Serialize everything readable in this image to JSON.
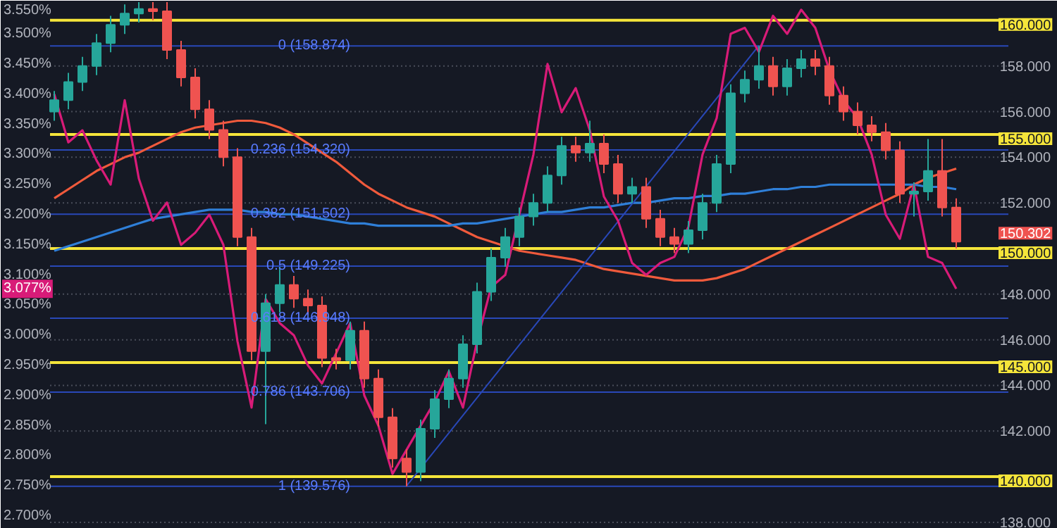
{
  "chart_data": {
    "type": "candlestick",
    "categories": [
      null,
      null,
      null,
      null,
      null,
      null,
      null,
      null,
      null,
      null,
      null,
      null,
      null,
      null,
      null,
      null,
      null,
      null,
      null,
      null,
      null,
      null,
      null,
      null,
      null,
      null,
      null,
      null,
      null,
      null,
      null,
      null,
      null,
      null,
      null,
      null,
      null,
      null,
      null,
      null,
      null,
      null,
      null,
      null,
      null,
      null,
      null,
      null,
      null,
      null,
      null,
      null,
      null,
      null,
      null,
      null,
      null,
      null,
      null,
      null,
      null,
      null,
      null,
      null,
      null
    ],
    "ohlc": [
      [
        156.0,
        156.9,
        155.6,
        156.5
      ],
      [
        156.5,
        157.7,
        156.1,
        157.3
      ],
      [
        157.3,
        158.4,
        156.9,
        158.0
      ],
      [
        158.0,
        159.4,
        157.6,
        159.0
      ],
      [
        159.0,
        160.2,
        158.6,
        159.8
      ],
      [
        159.8,
        160.7,
        159.4,
        160.3
      ],
      [
        160.3,
        160.8,
        159.9,
        160.5
      ],
      [
        160.5,
        160.8,
        160.0,
        160.4
      ],
      [
        160.4,
        160.8,
        158.3,
        158.7
      ],
      [
        158.7,
        159.1,
        157.1,
        157.5
      ],
      [
        157.5,
        157.9,
        155.7,
        156.1
      ],
      [
        156.1,
        156.5,
        154.8,
        155.2
      ],
      [
        155.2,
        155.6,
        153.6,
        154.0
      ],
      [
        154.0,
        154.4,
        150.1,
        150.5
      ],
      [
        150.5,
        150.9,
        145.1,
        145.5
      ],
      [
        145.5,
        148.0,
        142.3,
        147.6
      ],
      [
        147.6,
        149.2,
        147.2,
        148.4
      ],
      [
        148.4,
        148.8,
        147.4,
        147.8
      ],
      [
        147.8,
        148.2,
        147.1,
        147.5
      ],
      [
        147.5,
        147.9,
        144.8,
        145.2
      ],
      [
        145.2,
        145.6,
        144.7,
        145.1
      ],
      [
        145.1,
        146.8,
        144.7,
        146.4
      ],
      [
        146.4,
        146.8,
        143.9,
        144.3
      ],
      [
        144.3,
        144.7,
        142.2,
        142.6
      ],
      [
        142.6,
        143.0,
        140.4,
        140.8
      ],
      [
        140.8,
        141.2,
        139.576,
        140.2
      ],
      [
        140.2,
        142.5,
        139.8,
        142.1
      ],
      [
        142.1,
        143.8,
        141.7,
        143.4
      ],
      [
        143.4,
        144.7,
        143.0,
        144.3
      ],
      [
        144.3,
        146.2,
        143.9,
        145.8
      ],
      [
        145.8,
        148.5,
        145.4,
        148.1
      ],
      [
        148.1,
        150.0,
        147.7,
        149.6
      ],
      [
        149.6,
        150.9,
        149.2,
        150.5
      ],
      [
        150.5,
        151.8,
        150.1,
        151.4
      ],
      [
        151.4,
        152.4,
        151.0,
        152.0
      ],
      [
        152.0,
        153.6,
        151.6,
        153.2
      ],
      [
        153.2,
        154.9,
        152.8,
        154.5
      ],
      [
        154.5,
        154.9,
        153.8,
        154.2
      ],
      [
        154.2,
        155.6,
        153.8,
        154.6
      ],
      [
        154.6,
        155.0,
        153.3,
        153.7
      ],
      [
        153.7,
        154.1,
        152.0,
        152.4
      ],
      [
        152.4,
        153.1,
        152.0,
        152.7
      ],
      [
        152.7,
        153.1,
        150.9,
        151.3
      ],
      [
        151.3,
        151.7,
        150.1,
        150.5
      ],
      [
        150.5,
        150.9,
        149.8,
        150.2
      ],
      [
        150.2,
        151.2,
        149.8,
        150.8
      ],
      [
        150.8,
        152.4,
        150.4,
        152.0
      ],
      [
        152.0,
        154.1,
        151.6,
        153.7
      ],
      [
        153.7,
        157.2,
        153.3,
        156.8
      ],
      [
        156.8,
        157.8,
        156.4,
        157.4
      ],
      [
        157.4,
        158.874,
        157.0,
        158.0
      ],
      [
        158.0,
        158.4,
        156.7,
        157.1
      ],
      [
        157.1,
        158.3,
        156.7,
        157.9
      ],
      [
        157.9,
        158.7,
        157.5,
        158.3
      ],
      [
        158.3,
        158.7,
        157.6,
        158.0
      ],
      [
        158.0,
        158.4,
        156.3,
        156.7
      ],
      [
        156.7,
        157.1,
        155.6,
        156.0
      ],
      [
        156.0,
        156.4,
        155.0,
        155.4
      ],
      [
        155.4,
        155.8,
        154.7,
        155.1
      ],
      [
        155.1,
        155.5,
        153.9,
        154.3
      ],
      [
        154.3,
        154.7,
        152.0,
        152.4
      ],
      [
        152.4,
        152.9,
        151.4,
        152.5
      ],
      [
        152.5,
        154.8,
        152.1,
        153.4
      ],
      [
        153.4,
        154.8,
        151.4,
        151.8
      ],
      [
        151.8,
        152.2,
        150.0,
        150.302
      ]
    ],
    "colors": [
      "#26a69a",
      "#26a69a",
      "#26a69a",
      "#26a69a",
      "#26a69a",
      "#26a69a",
      "#26a69a",
      "#ef5350",
      "#ef5350",
      "#ef5350",
      "#ef5350",
      "#ef5350",
      "#ef5350",
      "#ef5350",
      "#ef5350",
      "#26a69a",
      "#26a69a",
      "#ef5350",
      "#ef5350",
      "#ef5350",
      "#ef5350",
      "#26a69a",
      "#ef5350",
      "#ef5350",
      "#ef5350",
      "#ef5350",
      "#26a69a",
      "#26a69a",
      "#26a69a",
      "#26a69a",
      "#26a69a",
      "#26a69a",
      "#26a69a",
      "#26a69a",
      "#26a69a",
      "#26a69a",
      "#26a69a",
      "#ef5350",
      "#26a69a",
      "#ef5350",
      "#ef5350",
      "#26a69a",
      "#ef5350",
      "#ef5350",
      "#ef5350",
      "#26a69a",
      "#26a69a",
      "#26a69a",
      "#26a69a",
      "#26a69a",
      "#26a69a",
      "#ef5350",
      "#26a69a",
      "#26a69a",
      "#ef5350",
      "#ef5350",
      "#ef5350",
      "#ef5350",
      "#ef5350",
      "#ef5350",
      "#ef5350",
      "#26a69a",
      "#26a69a",
      "#ef5350",
      "#ef5350"
    ],
    "series": [
      {
        "type": "line",
        "color": "#f05a3c",
        "values": [
          152.2,
          152.6,
          153.0,
          153.4,
          153.7,
          154.0,
          154.2,
          154.5,
          154.8,
          155.1,
          155.3,
          155.4,
          155.5,
          155.6,
          155.6,
          155.5,
          155.3,
          155.0,
          154.6,
          154.2,
          153.8,
          153.3,
          152.8,
          152.4,
          152.1,
          151.8,
          151.6,
          151.4,
          151.1,
          150.8,
          150.5,
          150.3,
          150.1,
          149.9,
          149.8,
          149.7,
          149.6,
          149.5,
          149.3,
          149.1,
          149.0,
          148.9,
          148.8,
          148.7,
          148.6,
          148.6,
          148.6,
          148.7,
          148.9,
          149.1,
          149.4,
          149.7,
          150.0,
          150.3,
          150.6,
          150.9,
          151.2,
          151.5,
          151.8,
          152.1,
          152.4,
          152.8,
          153.1,
          153.3,
          153.5
        ]
      },
      {
        "type": "line",
        "color": "#2f7fd8",
        "values": [
          149.9,
          150.1,
          150.3,
          150.5,
          150.7,
          150.9,
          151.1,
          151.3,
          151.4,
          151.5,
          151.6,
          151.7,
          151.7,
          151.7,
          151.6,
          151.6,
          151.5,
          151.5,
          151.4,
          151.3,
          151.2,
          151.1,
          151.1,
          151.0,
          151.0,
          151.0,
          151.0,
          151.0,
          151.0,
          151.1,
          151.1,
          151.2,
          151.3,
          151.4,
          151.5,
          151.6,
          151.6,
          151.7,
          151.8,
          151.8,
          151.9,
          152.0,
          152.0,
          152.1,
          152.2,
          152.2,
          152.3,
          152.3,
          152.4,
          152.4,
          152.5,
          152.6,
          152.6,
          152.7,
          152.7,
          152.8,
          152.8,
          152.8,
          152.8,
          152.8,
          152.8,
          152.8,
          152.7,
          152.7,
          152.6
        ]
      },
      {
        "type": "line",
        "color": "#2948b8",
        "values": [
          null,
          null,
          null,
          null,
          null,
          null,
          null,
          null,
          null,
          null,
          null,
          null,
          null,
          null,
          null,
          null,
          null,
          null,
          null,
          null,
          null,
          null,
          null,
          null,
          null,
          139.6,
          null,
          null,
          null,
          null,
          null,
          null,
          null,
          null,
          null,
          null,
          null,
          null,
          null,
          null,
          null,
          null,
          null,
          null,
          null,
          null,
          null,
          null,
          null,
          null,
          158.9,
          null,
          null,
          null,
          null,
          null,
          null,
          null,
          null,
          null,
          null,
          null,
          null,
          null,
          null
        ]
      },
      {
        "type": "line",
        "color": "#d81b78",
        "axis": "y2",
        "values": [
          3.4,
          3.32,
          3.34,
          3.29,
          3.25,
          3.39,
          3.26,
          3.19,
          3.22,
          3.15,
          3.17,
          3.2,
          3.15,
          2.99,
          2.88,
          3.06,
          3.02,
          3.0,
          2.95,
          2.92,
          2.97,
          3.02,
          2.9,
          2.85,
          2.77,
          2.81,
          2.85,
          2.89,
          2.94,
          2.88,
          2.99,
          3.08,
          3.1,
          3.2,
          3.3,
          3.45,
          3.37,
          3.41,
          3.34,
          3.23,
          3.19,
          3.12,
          3.1,
          3.12,
          3.13,
          3.18,
          3.3,
          3.36,
          3.5,
          3.51,
          3.47,
          3.53,
          3.5,
          3.54,
          3.51,
          3.44,
          3.39,
          3.36,
          3.3,
          3.2,
          3.16,
          3.25,
          3.13,
          3.12,
          3.077
        ]
      }
    ],
    "ylim": [
      137.72,
      160.86
    ],
    "yticks": [
      {
        "value": 138,
        "label": "138.000"
      },
      {
        "value": 142,
        "label": "142.000"
      },
      {
        "value": 144,
        "label": "144.000"
      },
      {
        "value": 146,
        "label": "146.000"
      },
      {
        "value": 148,
        "label": "148.000"
      },
      {
        "value": 152,
        "label": "152.000"
      },
      {
        "value": 154,
        "label": "154.000"
      },
      {
        "value": 156,
        "label": "156.000"
      },
      {
        "value": 158,
        "label": "158.000"
      }
    ],
    "y2lim": [
      2.679,
      3.555
    ],
    "y2ticks": [
      {
        "value": 2.7,
        "label": "2.700%"
      },
      {
        "value": 2.75,
        "label": "2.750%"
      },
      {
        "value": 2.8,
        "label": "2.800%"
      },
      {
        "value": 2.85,
        "label": "2.850%"
      },
      {
        "value": 2.9,
        "label": "2.900%"
      },
      {
        "value": 2.95,
        "label": "2.950%"
      },
      {
        "value": 3.0,
        "label": "3.000%"
      },
      {
        "value": 3.05,
        "label": "3.050%"
      },
      {
        "value": 3.1,
        "label": "3.100%"
      },
      {
        "value": 3.15,
        "label": "3.150%"
      },
      {
        "value": 3.2,
        "label": "3.200%"
      },
      {
        "value": 3.25,
        "label": "3.250%"
      },
      {
        "value": 3.3,
        "label": "3.300%"
      },
      {
        "value": 3.35,
        "label": "3.350%"
      },
      {
        "value": 3.4,
        "label": "3.400%"
      },
      {
        "value": 3.45,
        "label": "3.450%"
      },
      {
        "value": 3.5,
        "label": "3.500%"
      },
      {
        "value": 3.55,
        "label": "3.550%"
      }
    ],
    "grid": "y",
    "ref_lines": [
      {
        "axis": "y",
        "value": 160,
        "label": "160.000",
        "color": "#f5e53a"
      },
      {
        "axis": "y",
        "value": 155,
        "label": "155.000",
        "color": "#f5e53a"
      },
      {
        "axis": "y",
        "value": 150,
        "label": "150.000",
        "color": "#f5e53a"
      },
      {
        "axis": "y",
        "value": 145,
        "label": "145.000",
        "color": "#f5e53a"
      },
      {
        "axis": "y",
        "value": 140,
        "label": "140.000",
        "color": "#f5e53a"
      },
      {
        "axis": "y",
        "value": 158.874,
        "color": "#2948b8"
      },
      {
        "axis": "y",
        "value": 154.32,
        "color": "#2948b8"
      },
      {
        "axis": "y",
        "value": 151.502,
        "color": "#2948b8"
      },
      {
        "axis": "y",
        "value": 149.225,
        "color": "#2948b8"
      },
      {
        "axis": "y",
        "value": 146.948,
        "color": "#2948b8"
      },
      {
        "axis": "y",
        "value": 143.706,
        "color": "#2948b8"
      },
      {
        "axis": "y",
        "value": 139.576,
        "color": "#2948b8"
      }
    ],
    "annotations": [
      "150.302",
      "3.077%",
      {
        "text": "0 (158.874)",
        "y": 158.874
      },
      {
        "text": "0.236 (154.320)",
        "y": 154.32
      },
      {
        "text": "0.382 (151.502)",
        "y": 151.502
      },
      {
        "text": "0.5 (149.225)",
        "y": 149.225
      },
      {
        "text": "0.618 (146.948)",
        "y": 146.948
      },
      {
        "text": "0.786 (143.706)",
        "y": 143.706
      },
      {
        "text": "1 (139.576)",
        "y": 139.576
      }
    ]
  }
}
